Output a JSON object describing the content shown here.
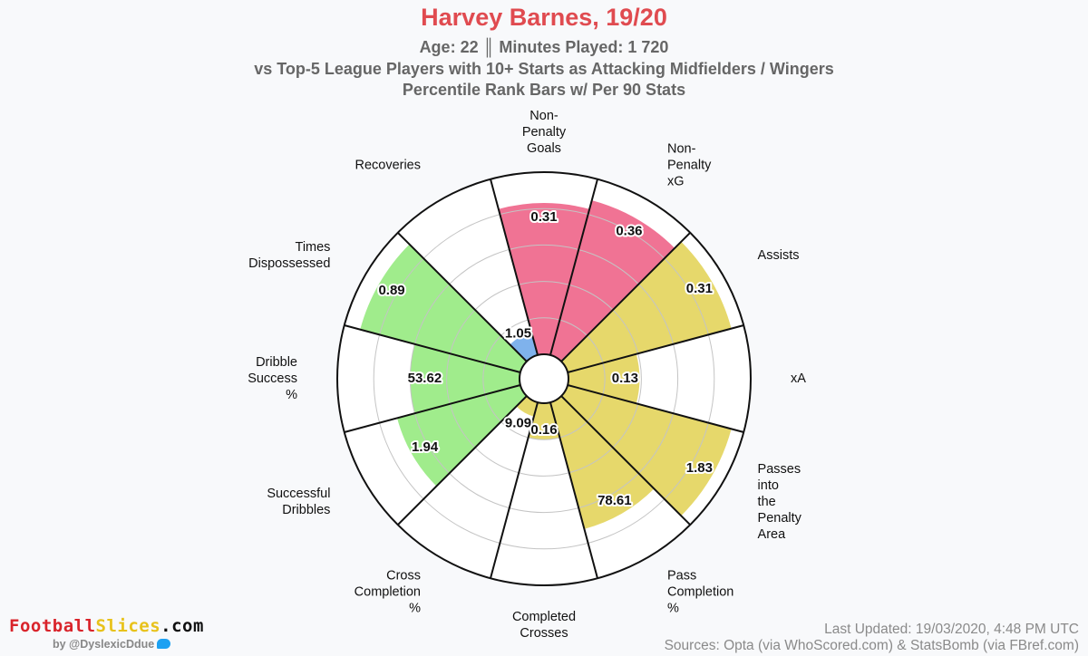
{
  "header": {
    "title": "Harvey Barnes, 19/20",
    "subtitle1": "Age: 22 ║ Minutes Played: 1 720",
    "subtitle2": "vs Top-5 League Players with 10+ Starts as Attacking Midfielders / Wingers",
    "subtitle3": "Percentile Rank Bars w/ Per 90 Stats"
  },
  "footer": {
    "brand_part1": "Football",
    "brand_part2": "Slices",
    "brand_part3": ".com",
    "byline": "by @DyslexicDdue",
    "updated": "Last Updated: 19/03/2020, 4:48 PM UTC",
    "sources": "Sources: Opta (via WhoScored.com) & StatsBomb (via FBref.com)"
  },
  "colors": {
    "attacking": "#f07394",
    "creation": "#e6d86b",
    "possession": "#a0ec8c",
    "defending": "#7fb2ec",
    "title": "#e04b50",
    "background": "#f8f9fb"
  },
  "chart_data": {
    "type": "polar_bar",
    "scale_max": 100,
    "grid_rings": [
      20,
      40,
      60,
      80
    ],
    "segments": [
      {
        "label": [
          "Non-",
          "Penalty",
          "Goals"
        ],
        "value": "0.31",
        "percentile": 83,
        "group": "attacking"
      },
      {
        "label": [
          "Non-",
          "Penalty",
          "xG"
        ],
        "value": "0.36",
        "percentile": 88,
        "group": "attacking"
      },
      {
        "label": [
          "Assists"
        ],
        "value": "0.31",
        "percentile": 93,
        "group": "creation"
      },
      {
        "label": [
          "xA"
        ],
        "value": "0.13",
        "percentile": 39,
        "group": "creation"
      },
      {
        "label": [
          "Passes",
          "into",
          "the",
          "Penalty",
          "Area"
        ],
        "value": "1.83",
        "percentile": 93,
        "group": "creation"
      },
      {
        "label": [
          "Pass",
          "Completion",
          "%"
        ],
        "value": "78.61",
        "percentile": 72,
        "group": "creation"
      },
      {
        "label": [
          "Completed",
          "Crosses"
        ],
        "value": "0.16",
        "percentile": 20,
        "group": "creation"
      },
      {
        "label": [
          "Cross",
          "Completion",
          "%"
        ],
        "value": "9.09",
        "percentile": 8,
        "group": "creation"
      },
      {
        "label": [
          "Successful",
          "Dribbles"
        ],
        "value": "1.94",
        "percentile": 70,
        "group": "possession"
      },
      {
        "label": [
          "Dribble",
          "Success",
          "%"
        ],
        "value": "53.62",
        "percentile": 60,
        "group": "possession"
      },
      {
        "label": [
          "Times",
          "Dispossessed"
        ],
        "value": "0.89",
        "percentile": 91,
        "group": "possession"
      },
      {
        "label": [
          "Recoveries"
        ],
        "value": "1.05",
        "percentile": 13,
        "group": "defending"
      }
    ]
  }
}
